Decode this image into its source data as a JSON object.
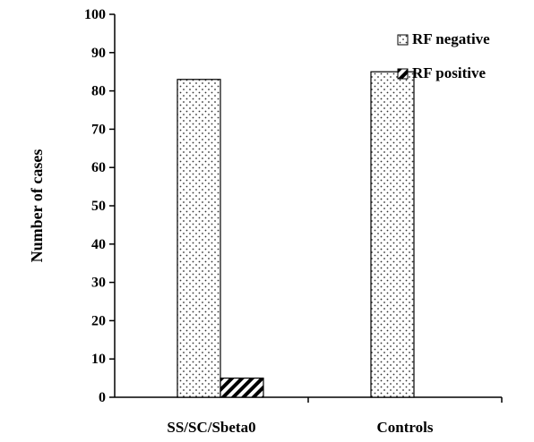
{
  "chart_data": {
    "type": "bar",
    "categories": [
      "SS/SC/Sbeta0",
      "Controls"
    ],
    "series": [
      {
        "name": "RF negative",
        "values": [
          83,
          85
        ],
        "pattern": "dots"
      },
      {
        "name": "RF positive",
        "values": [
          5,
          0
        ],
        "pattern": "diagonal-hatch"
      }
    ],
    "title": "",
    "xlabel": "",
    "ylabel": "Number of cases",
    "ylim": [
      0,
      100
    ],
    "yticks": [
      0,
      10,
      20,
      30,
      40,
      50,
      60,
      70,
      80,
      90,
      100
    ],
    "grid": false,
    "legend_position": "top-right"
  }
}
